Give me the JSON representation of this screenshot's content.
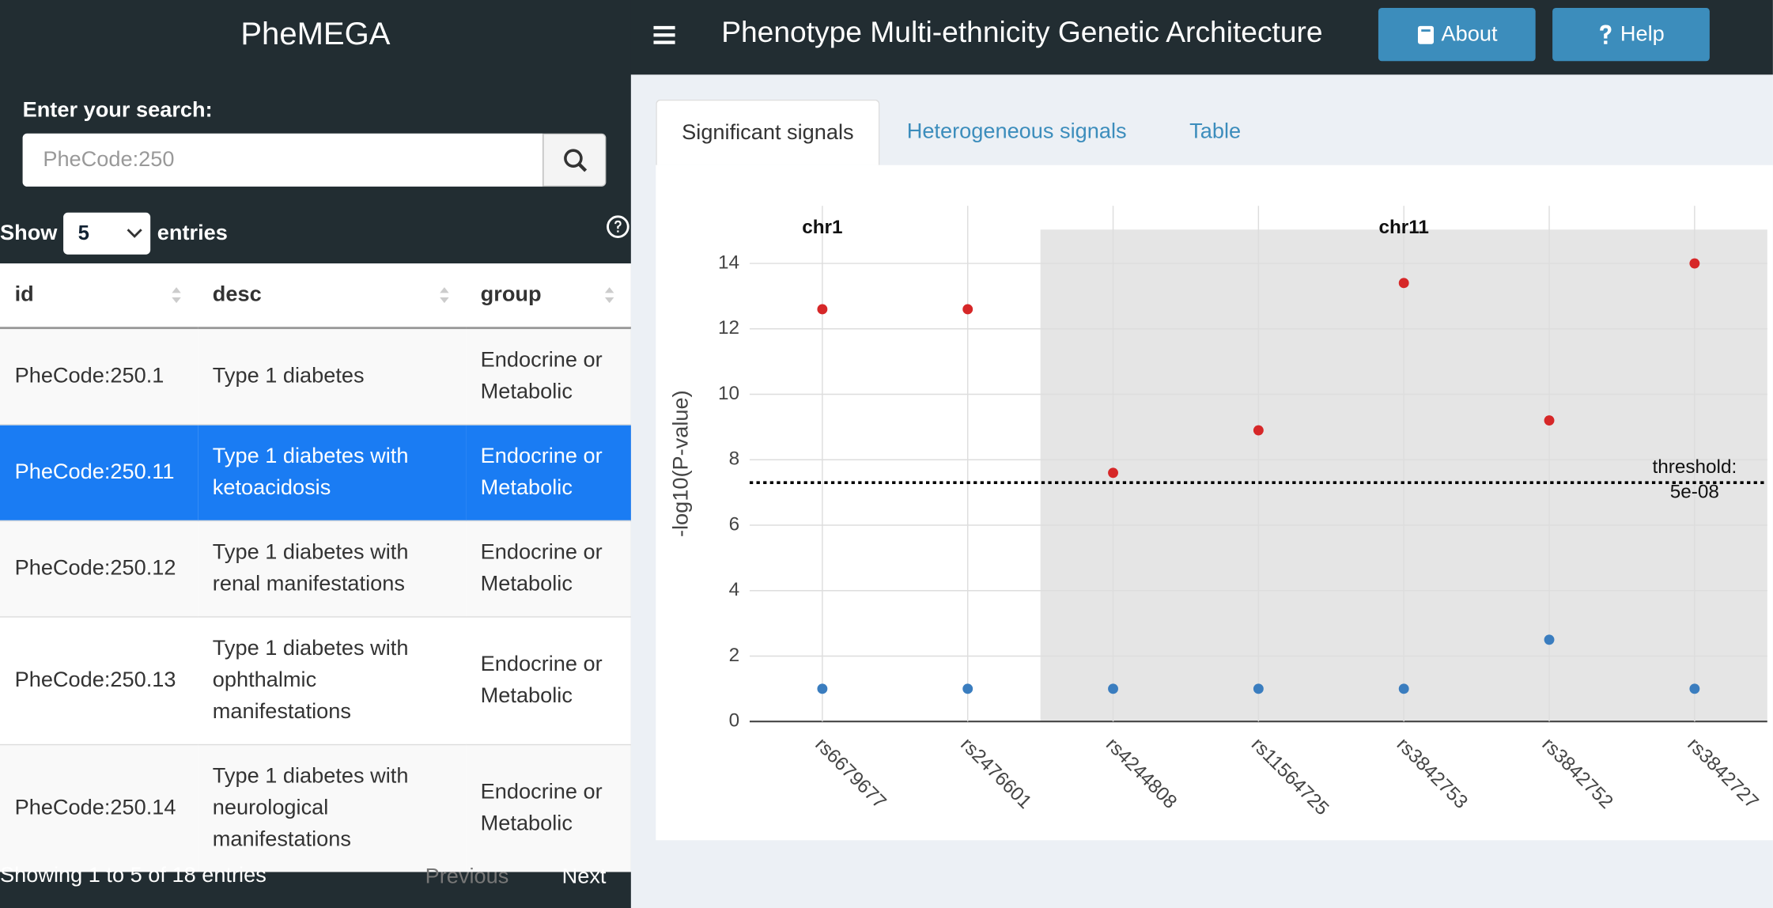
{
  "app_title": "PheMEGA",
  "header": {
    "title": "Phenotype Multi-ethnicity Genetic Architecture",
    "buttons": [
      "About",
      "Help"
    ]
  },
  "search": {
    "label": "Enter your search:",
    "placeholder": "PheCode:250"
  },
  "length_menu": {
    "before": "Show",
    "value": "5",
    "after": "entries"
  },
  "table": {
    "columns": [
      "id",
      "desc",
      "group"
    ],
    "rows": [
      [
        "PheCode:250.1",
        "Type 1 diabetes",
        "Endocrine or Metabolic"
      ],
      [
        "PheCode:250.11",
        "Type 1 diabetes with ketoacidosis",
        "Endocrine or Metabolic"
      ],
      [
        "PheCode:250.12",
        "Type 1 diabetes with renal manifestations",
        "Endocrine or Metabolic"
      ],
      [
        "PheCode:250.13",
        "Type 1 diabetes with ophthalmic manifestations",
        "Endocrine or Metabolic"
      ],
      [
        "PheCode:250.14",
        "Type 1 diabetes with neurological manifestations",
        "Endocrine or Metabolic"
      ]
    ],
    "selected_row": 1
  },
  "pagination": {
    "info": "Showing 1 to 5 of 18 entries",
    "previous": "Previous",
    "next": "Next"
  },
  "tabs": {
    "items": [
      "Significant signals",
      "Heterogeneous signals",
      "Table"
    ],
    "active": 0
  },
  "chart_data": {
    "type": "scatter",
    "categories": [
      "rs6679677",
      "rs2476601",
      "rs4244808",
      "rs11564725",
      "rs3842753",
      "rs3842752",
      "rs3842727"
    ],
    "series": [
      {
        "color": "#d62728",
        "values": [
          12.6,
          12.6,
          7.6,
          8.9,
          13.4,
          9.2,
          14.0
        ]
      },
      {
        "color": "#3a7dbf",
        "values": [
          1,
          1,
          1,
          1,
          1,
          2.5,
          1
        ]
      }
    ],
    "ylabel": "-log10(P-value)",
    "ylim": [
      0,
      15.76
    ],
    "yticks": [
      0,
      2,
      4,
      6,
      8,
      10,
      12,
      14
    ],
    "grid": true,
    "annotations": [
      {
        "text": "chr1",
        "x": "rs6679677"
      },
      {
        "text": "chr11",
        "x": "rs3842753"
      }
    ],
    "shaded_from": "rs4244808",
    "threshold": {
      "value": 7.3,
      "label": [
        "threshold:",
        "5e-08"
      ]
    }
  }
}
